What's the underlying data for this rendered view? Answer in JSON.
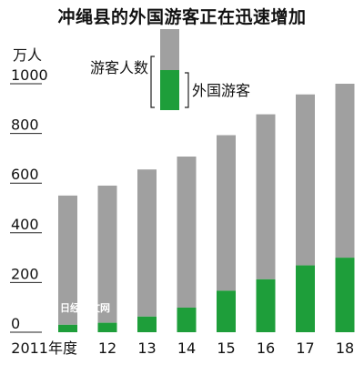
{
  "chart_data": {
    "type": "bar",
    "title": "冲绳县的外国游客正在迅速增加",
    "unit_label": "万人",
    "categories": [
      "2011年度",
      "12",
      "13",
      "14",
      "15",
      "16",
      "17",
      "18"
    ],
    "series": [
      {
        "name": "游客人数",
        "values": [
          550,
          590,
          655,
          707,
          793,
          877,
          957,
          1000
        ],
        "color": "#a0a0a0"
      },
      {
        "name": "外国游客",
        "values": [
          30,
          38,
          63,
          99,
          167,
          213,
          269,
          300
        ],
        "color": "#1e9e3a"
      }
    ],
    "ylim": [
      0,
      1000
    ],
    "yticks": [
      0,
      200,
      400,
      600,
      800,
      1000
    ],
    "grid": false,
    "legend_position": "top-center",
    "watermark": "日经中文网"
  }
}
